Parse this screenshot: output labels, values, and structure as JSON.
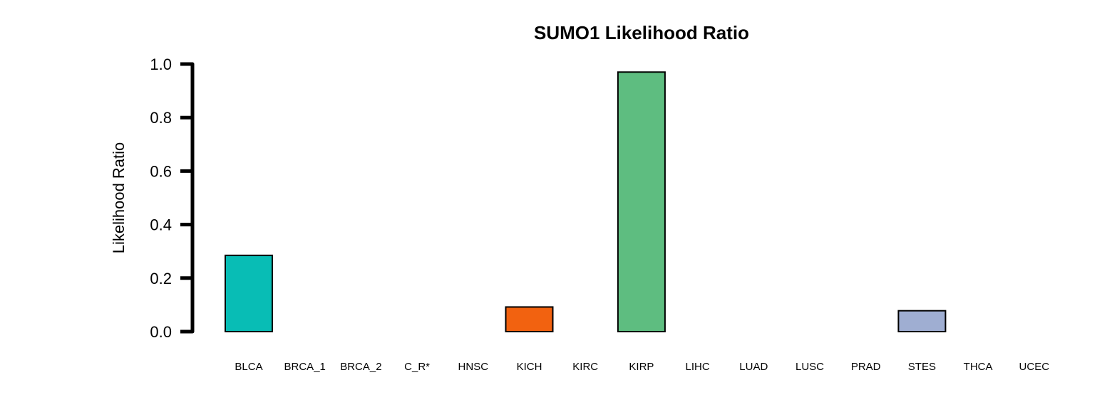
{
  "chart_data": {
    "type": "bar",
    "title": "SUMO1 Likelihood Ratio",
    "xlabel": "",
    "ylabel": "Likelihood Ratio",
    "ylim": [
      0,
      1.0
    ],
    "yticks": [
      "0.0",
      "0.2",
      "0.4",
      "0.6",
      "0.8",
      "1.0"
    ],
    "categories": [
      "BLCA",
      "BRCA_1",
      "BRCA_2",
      "C_R*",
      "HNSC",
      "KICH",
      "KIRC",
      "KIRP",
      "LIHC",
      "LUAD",
      "LUSC",
      "PRAD",
      "STES",
      "THCA",
      "UCEC"
    ],
    "values": [
      0.285,
      0,
      0,
      0,
      0,
      0.092,
      0,
      0.97,
      0,
      0,
      0,
      0,
      0.078,
      0,
      0
    ],
    "colors": [
      "#08BDB5",
      "#08BDB5",
      "#08BDB5",
      "#08BDB5",
      "#08BDB5",
      "#F26210",
      "#F26210",
      "#5EBD80",
      "#5EBD80",
      "#5EBD80",
      "#5EBD80",
      "#5EBD80",
      "#9FAED2",
      "#9FAED2",
      "#9FAED2"
    ],
    "grid": false
  }
}
